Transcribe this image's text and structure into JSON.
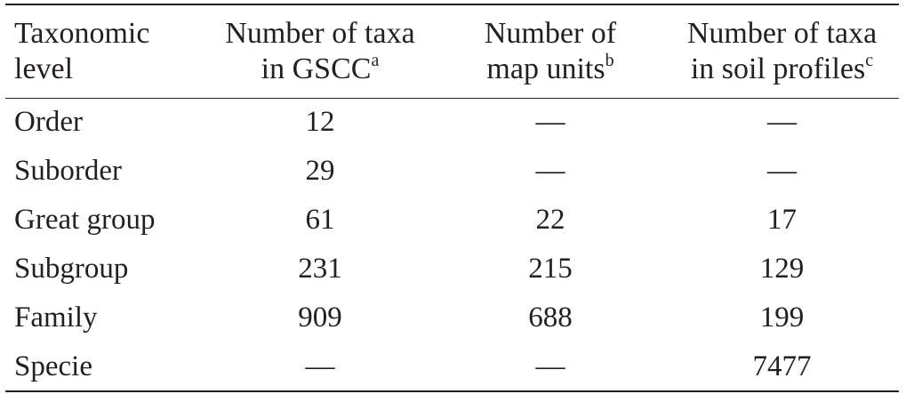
{
  "table": {
    "header": [
      {
        "lines": [
          "Taxonomic",
          "level"
        ]
      },
      {
        "lines": [
          "Number of taxa",
          "in GSCC"
        ],
        "sup": "a"
      },
      {
        "lines": [
          "Number of",
          "map units"
        ],
        "sup": "b"
      },
      {
        "lines": [
          "Number of taxa",
          "in soil profiles"
        ],
        "sup": "c"
      }
    ],
    "rows": [
      [
        "Order",
        12,
        "—",
        "—"
      ],
      [
        "Suborder",
        29,
        "—",
        "—"
      ],
      [
        "Great group",
        61,
        22,
        17
      ],
      [
        "Subgroup",
        231,
        215,
        129
      ],
      [
        "Family",
        909,
        688,
        199
      ],
      [
        "Specie",
        "—",
        "—",
        7477
      ]
    ]
  }
}
